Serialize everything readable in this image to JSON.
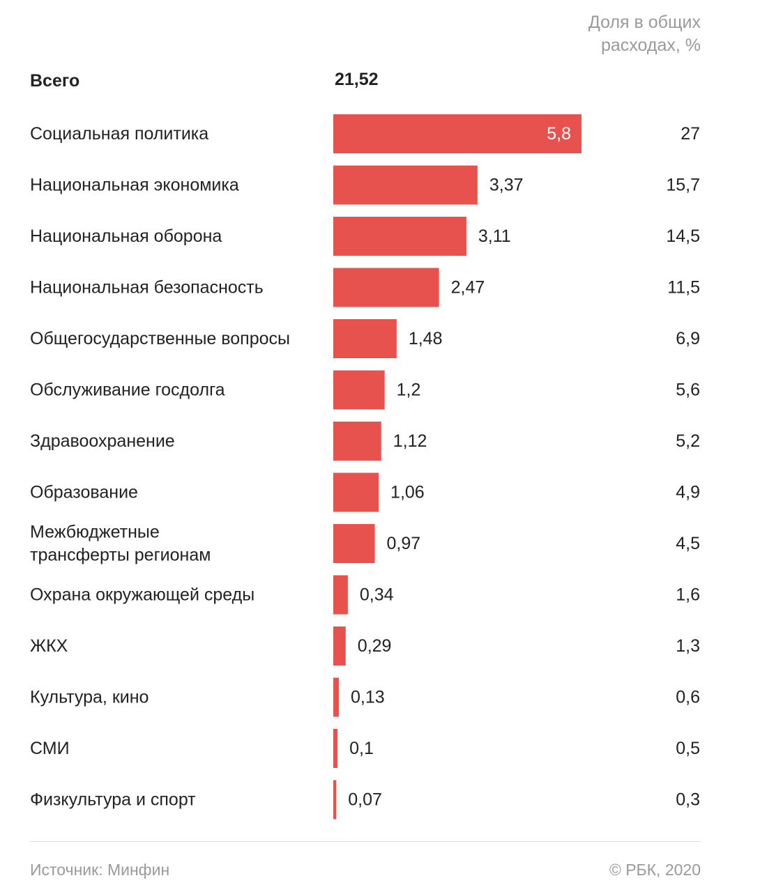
{
  "header": {
    "share_label_line1": "Доля в общих",
    "share_label_line2": "расходах, %"
  },
  "total": {
    "label": "Всего",
    "value": "21,52"
  },
  "chart_data": {
    "type": "bar",
    "orientation": "horizontal",
    "categories": [
      [
        "Социальная политика"
      ],
      [
        "Национальная экономика"
      ],
      [
        "Национальная оборона"
      ],
      [
        "Национальная безопасность"
      ],
      [
        "Общегосударственные вопросы"
      ],
      [
        "Обслуживание госдолга"
      ],
      [
        "Здравоохранение"
      ],
      [
        "Образование"
      ],
      [
        "Межбюджетные",
        "трансферты регионам"
      ],
      [
        "Охрана окружающей среды"
      ],
      [
        "ЖКХ"
      ],
      [
        "Культура, кино"
      ],
      [
        "СМИ"
      ],
      [
        "Физкультура и спорт"
      ]
    ],
    "values": [
      5.8,
      3.37,
      3.11,
      2.47,
      1.48,
      1.2,
      1.12,
      1.06,
      0.97,
      0.34,
      0.29,
      0.13,
      0.1,
      0.07
    ],
    "value_labels": [
      "5,8",
      "3,37",
      "3,11",
      "2,47",
      "1,48",
      "1,2",
      "1,12",
      "1,06",
      "0,97",
      "0,34",
      "0,29",
      "0,13",
      "0,1",
      "0,07"
    ],
    "share_labels": [
      "27",
      "15,7",
      "14,5",
      "11,5",
      "6,9",
      "5,6",
      "5,2",
      "4,9",
      "4,5",
      "1,6",
      "1,3",
      "0,6",
      "0,5",
      "0,3"
    ],
    "bar_color": "#e8524e",
    "grid": false
  },
  "footer": {
    "source": "Источник: Минфин",
    "credit": "© РБК, 2020"
  }
}
